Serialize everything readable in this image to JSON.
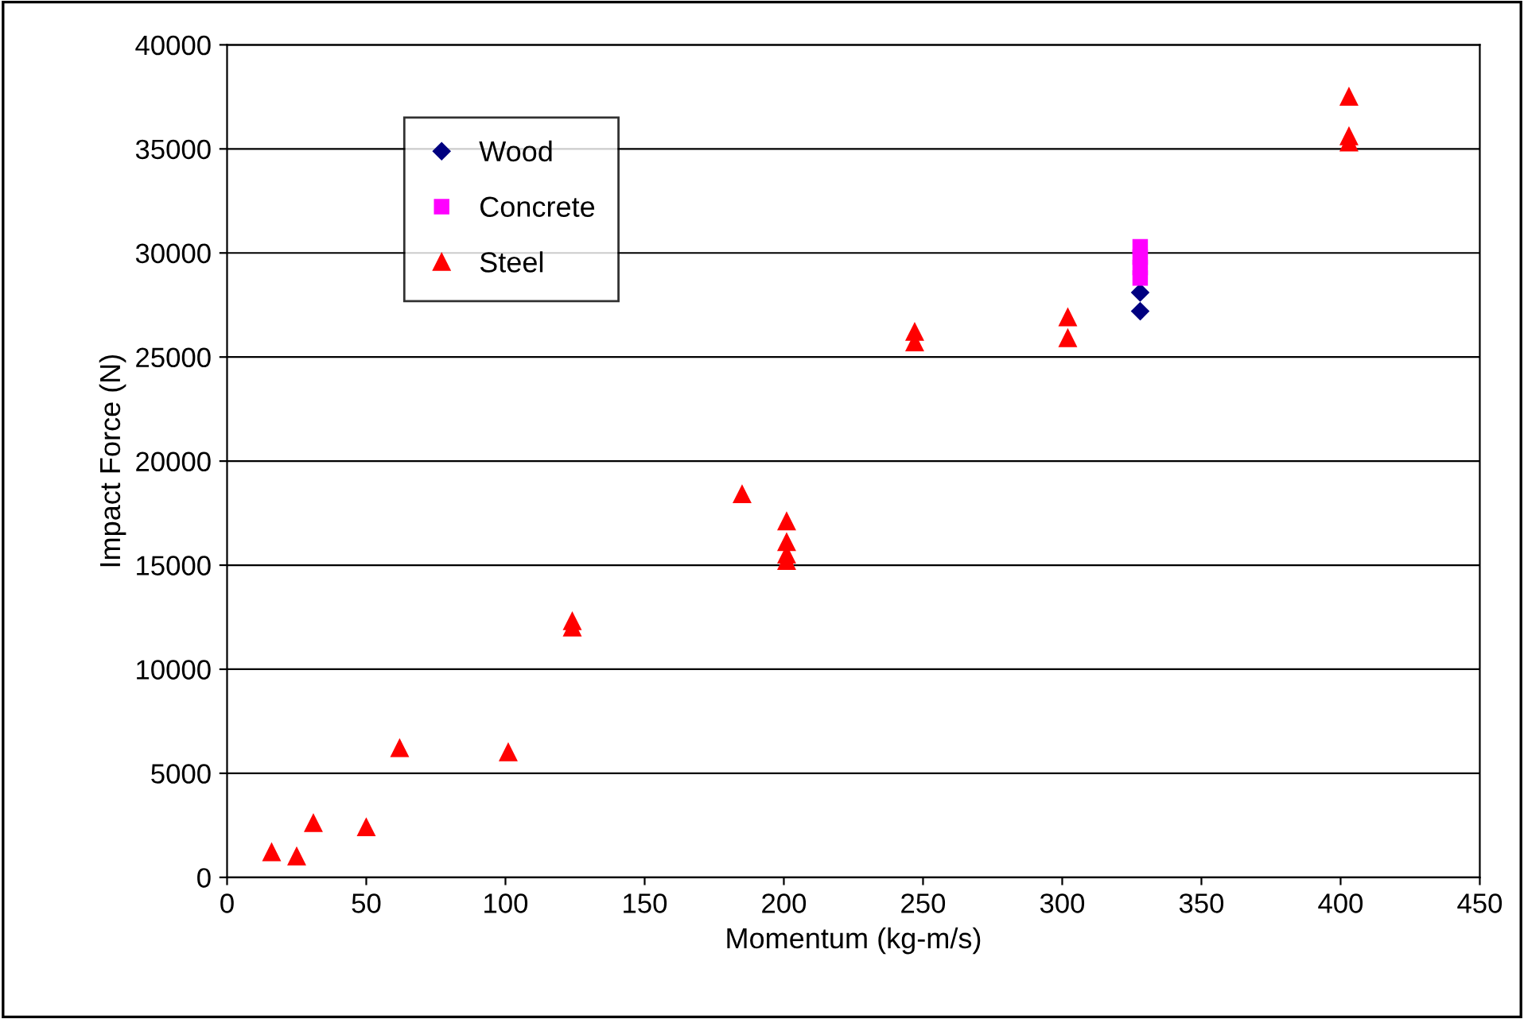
{
  "chart_data": {
    "type": "scatter",
    "xlabel": "Momentum (kg-m/s)",
    "ylabel": "Impact Force (N)",
    "xlim": [
      0,
      450
    ],
    "xticks": [
      0,
      50,
      100,
      150,
      200,
      250,
      300,
      350,
      400,
      450
    ],
    "ylim": [
      0,
      40000
    ],
    "yticks": [
      0,
      5000,
      10000,
      15000,
      20000,
      25000,
      30000,
      35000,
      40000
    ],
    "grid": "y",
    "legend": "top left",
    "series": [
      {
        "name": "Wood",
        "color": "#000080",
        "marker": "diamond",
        "x": [
          328,
          328
        ],
        "values": [
          28100,
          27200
        ]
      },
      {
        "name": "Concrete",
        "color": "#ff00ff",
        "marker": "square",
        "x": [
          328,
          328,
          328,
          328
        ],
        "values": [
          28800,
          29300,
          29800,
          30300
        ]
      },
      {
        "name": "Steel",
        "color": "#ff0000",
        "marker": "triangle",
        "x": [
          16,
          25,
          31,
          50,
          62,
          101,
          124,
          124,
          185,
          201,
          201,
          201,
          201,
          247,
          247,
          302,
          302,
          403,
          403,
          403
        ],
        "values": [
          1200,
          1000,
          2600,
          2400,
          6200,
          6000,
          12300,
          12000,
          18400,
          17100,
          16100,
          15500,
          15200,
          26200,
          25700,
          26900,
          25900,
          37500,
          35600,
          35300
        ]
      }
    ]
  }
}
